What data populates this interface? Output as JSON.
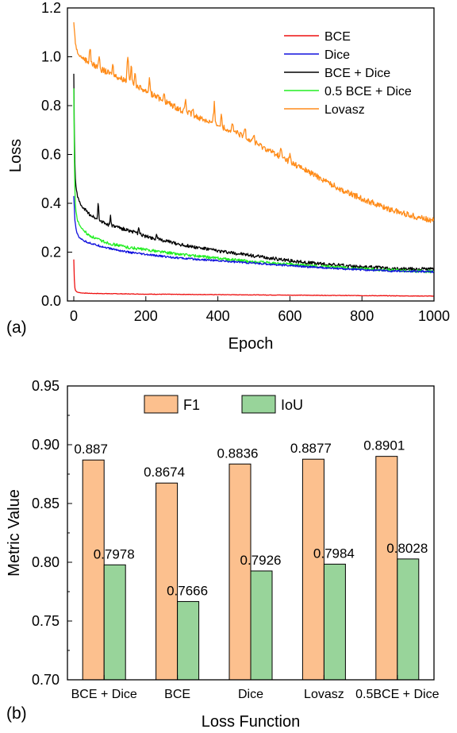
{
  "chart_data": [
    {
      "type": "line",
      "panel_label": "(a)",
      "xlabel": "Epoch",
      "ylabel": "Loss",
      "xlim": [
        0,
        1000
      ],
      "ylim": [
        0.0,
        1.2
      ],
      "xticks": [
        0,
        200,
        400,
        600,
        800,
        1000
      ],
      "yticks": [
        0.0,
        0.2,
        0.4,
        0.6,
        0.8,
        1.0,
        1.2
      ],
      "grid": false,
      "legend_position": "top-right",
      "series": [
        {
          "name": "BCE",
          "color": "#ee1111",
          "noise": 0.001,
          "points": [
            [
              0,
              0.17
            ],
            [
              2,
              0.06
            ],
            [
              5,
              0.042
            ],
            [
              10,
              0.036
            ],
            [
              20,
              0.033
            ],
            [
              50,
              0.031
            ],
            [
              100,
              0.03
            ],
            [
              200,
              0.028
            ],
            [
              400,
              0.026
            ],
            [
              600,
              0.024
            ],
            [
              800,
              0.022
            ],
            [
              1000,
              0.02
            ]
          ]
        },
        {
          "name": "Dice",
          "color": "#1010dd",
          "noise": 0.004,
          "points": [
            [
              0,
              0.43
            ],
            [
              3,
              0.33
            ],
            [
              8,
              0.28
            ],
            [
              15,
              0.26
            ],
            [
              30,
              0.245
            ],
            [
              60,
              0.23
            ],
            [
              100,
              0.215
            ],
            [
              150,
              0.2
            ],
            [
              200,
              0.19
            ],
            [
              300,
              0.175
            ],
            [
              400,
              0.165
            ],
            [
              500,
              0.155
            ],
            [
              600,
              0.145
            ],
            [
              700,
              0.135
            ],
            [
              800,
              0.128
            ],
            [
              900,
              0.122
            ],
            [
              1000,
              0.12
            ]
          ]
        },
        {
          "name": "BCE + Dice",
          "color": "#000000",
          "noise": 0.007,
          "points": [
            [
              0,
              0.93
            ],
            [
              2,
              0.6
            ],
            [
              5,
              0.48
            ],
            [
              10,
              0.43
            ],
            [
              20,
              0.39
            ],
            [
              40,
              0.36
            ],
            [
              70,
              0.33
            ],
            [
              100,
              0.31
            ],
            [
              150,
              0.29
            ],
            [
              200,
              0.265
            ],
            [
              300,
              0.23
            ],
            [
              400,
              0.205
            ],
            [
              500,
              0.185
            ],
            [
              600,
              0.165
            ],
            [
              700,
              0.15
            ],
            [
              800,
              0.14
            ],
            [
              900,
              0.132
            ],
            [
              1000,
              0.13
            ]
          ]
        },
        {
          "name": "0.5 BCE + Dice",
          "color": "#22ee22",
          "noise": 0.006,
          "points": [
            [
              0,
              0.87
            ],
            [
              2,
              0.5
            ],
            [
              5,
              0.38
            ],
            [
              10,
              0.33
            ],
            [
              20,
              0.3
            ],
            [
              40,
              0.27
            ],
            [
              70,
              0.25
            ],
            [
              100,
              0.235
            ],
            [
              150,
              0.22
            ],
            [
              200,
              0.21
            ],
            [
              300,
              0.19
            ],
            [
              400,
              0.175
            ],
            [
              500,
              0.16
            ],
            [
              600,
              0.15
            ],
            [
              700,
              0.14
            ],
            [
              800,
              0.132
            ],
            [
              900,
              0.125
            ],
            [
              1000,
              0.12
            ]
          ]
        },
        {
          "name": "Lovasz",
          "color": "#ff8c1a",
          "noise": 0.012,
          "points": [
            [
              0,
              1.14
            ],
            [
              5,
              1.05
            ],
            [
              10,
              1.02
            ],
            [
              20,
              1.0
            ],
            [
              50,
              0.97
            ],
            [
              100,
              0.93
            ],
            [
              150,
              0.9
            ],
            [
              200,
              0.86
            ],
            [
              250,
              0.82
            ],
            [
              300,
              0.78
            ],
            [
              350,
              0.75
            ],
            [
              400,
              0.72
            ],
            [
              450,
              0.69
            ],
            [
              500,
              0.65
            ],
            [
              550,
              0.61
            ],
            [
              600,
              0.57
            ],
            [
              650,
              0.53
            ],
            [
              700,
              0.49
            ],
            [
              750,
              0.45
            ],
            [
              800,
              0.42
            ],
            [
              850,
              0.39
            ],
            [
              900,
              0.365
            ],
            [
              950,
              0.345
            ],
            [
              1000,
              0.33
            ]
          ],
          "spikes": [
            [
              45,
              0.09
            ],
            [
              70,
              0.07
            ],
            [
              108,
              0.05
            ],
            [
              150,
              0.16
            ],
            [
              160,
              0.08
            ],
            [
              170,
              0.06
            ],
            [
              210,
              0.07
            ],
            [
              250,
              0.05
            ],
            [
              310,
              0.06
            ],
            [
              330,
              0.04
            ],
            [
              390,
              0.11
            ],
            [
              410,
              0.07
            ],
            [
              440,
              0.05
            ],
            [
              475,
              0.06
            ],
            [
              500,
              0.05
            ],
            [
              575,
              0.05
            ],
            [
              600,
              0.04
            ]
          ]
        }
      ]
    },
    {
      "type": "bar",
      "panel_label": "(b)",
      "xlabel": "Loss Function",
      "ylabel": "Metric  Value",
      "ylim": [
        0.7,
        0.95
      ],
      "yticks": [
        "0.70",
        "0.75",
        "0.80",
        "0.85",
        "0.90",
        "0.95"
      ],
      "grid": false,
      "legend_position": "top",
      "categories": [
        "BCE + Dice",
        "BCE",
        "Dice",
        "Lovasz",
        "0.5BCE + Dice"
      ],
      "series": [
        {
          "name": "F1",
          "color": "#fcc08e",
          "values": [
            0.887,
            0.8674,
            0.8836,
            0.8877,
            0.8901
          ],
          "labels": [
            "0.887",
            "0.8674",
            "0.8836",
            "0.8877",
            "0.8901"
          ]
        },
        {
          "name": "IoU",
          "color": "#98d49a",
          "values": [
            0.7978,
            0.7666,
            0.7926,
            0.7984,
            0.8028
          ],
          "labels": [
            "0.7978",
            "0.7666",
            "0.7926",
            "0.7984",
            "0.8028"
          ]
        }
      ]
    }
  ]
}
